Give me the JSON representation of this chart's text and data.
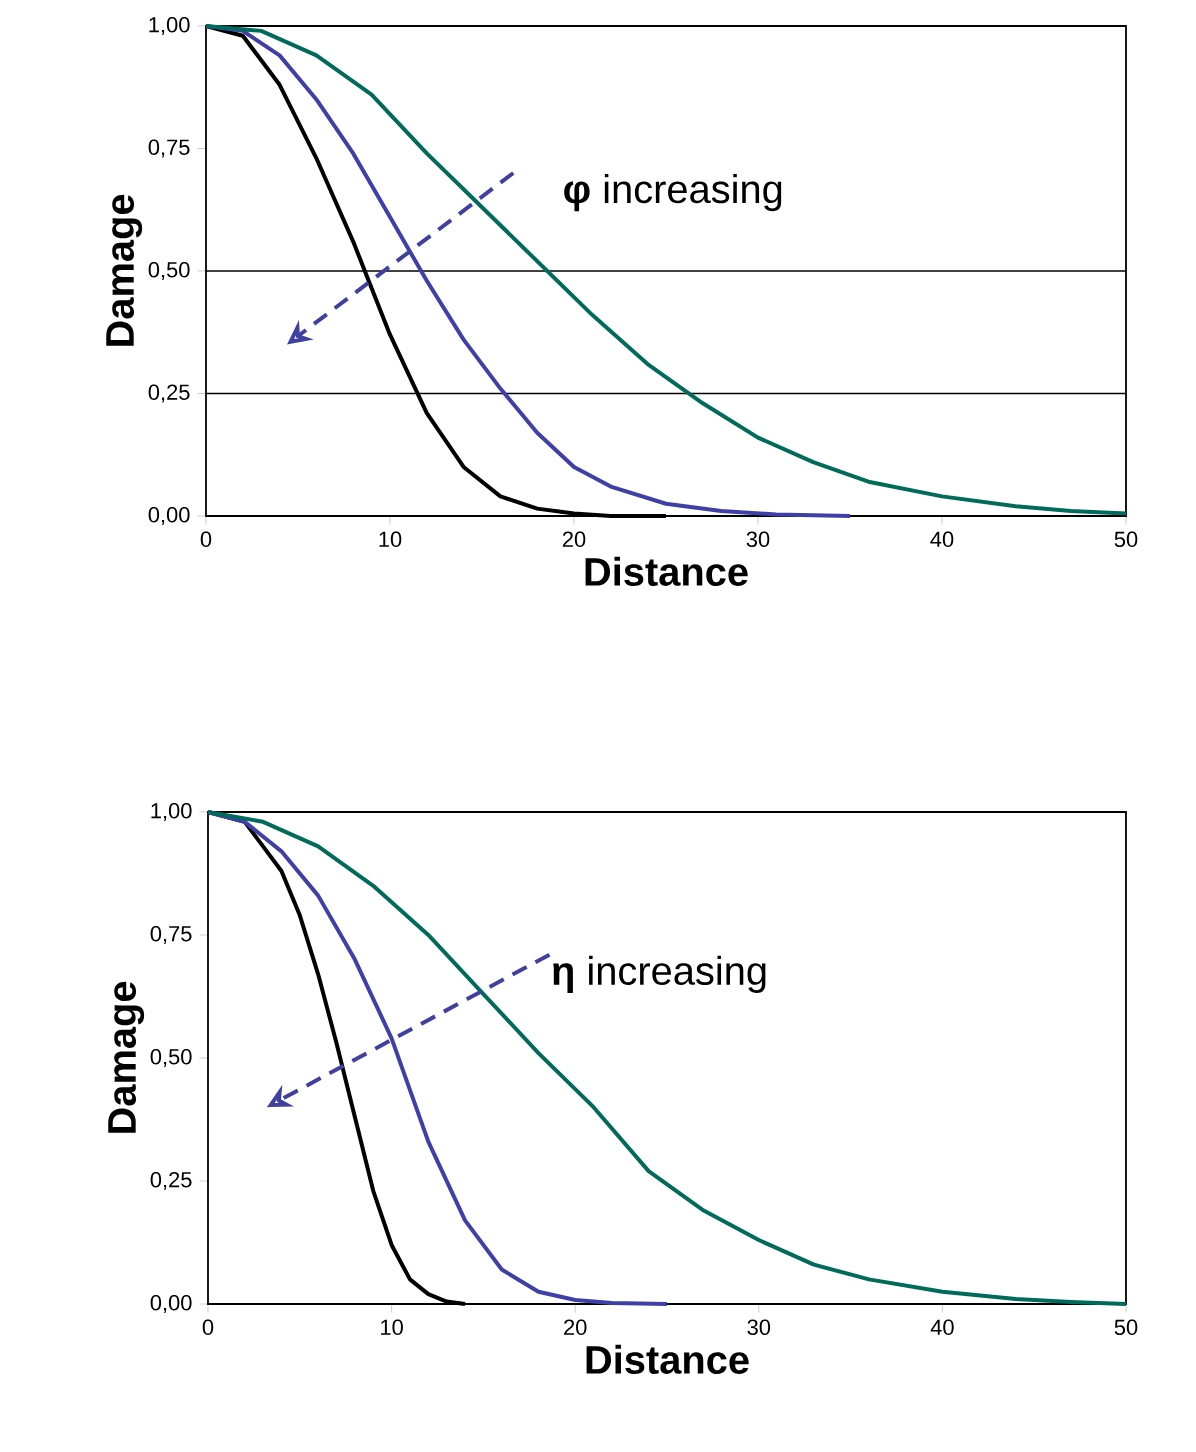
{
  "chart_data": [
    {
      "type": "line",
      "xlabel": "Distance",
      "ylabel": "Damage",
      "annotations": [
        "**φ** increasing"
      ],
      "xlim": [
        0,
        50
      ],
      "ylim": [
        0,
        1
      ],
      "xticks": [
        0,
        10,
        20,
        30,
        40,
        50
      ],
      "yticks": [
        {
          "value": 0,
          "label": "0,00"
        },
        {
          "value": 0.25,
          "label": "0,25"
        },
        {
          "value": 0.5,
          "label": "0,50"
        },
        {
          "value": 0.75,
          "label": "0,75"
        },
        {
          "value": 1,
          "label": "1,00"
        }
      ],
      "ref_lines": [
        {
          "axis": "y",
          "value": 0.5,
          "color": "#000000"
        },
        {
          "axis": "y",
          "value": 0.25,
          "color": "#000000"
        }
      ],
      "line_style": "solid",
      "marker": "none",
      "series": [
        {
          "color": "#000000",
          "x": [
            0,
            2,
            4,
            6,
            8,
            10,
            12,
            14,
            16,
            18,
            20,
            22,
            25
          ],
          "values": [
            1,
            0.98,
            0.88,
            0.73,
            0.56,
            0.37,
            0.21,
            0.1,
            0.04,
            0.015,
            0.005,
            0,
            0
          ]
        },
        {
          "color": "#3f3fa8",
          "x": [
            0,
            2,
            4,
            6,
            8,
            10,
            12,
            14,
            16,
            18,
            20,
            22,
            25,
            28,
            31,
            35
          ],
          "values": [
            1,
            0.99,
            0.94,
            0.85,
            0.74,
            0.61,
            0.48,
            0.36,
            0.26,
            0.17,
            0.1,
            0.06,
            0.025,
            0.01,
            0.003,
            0
          ]
        },
        {
          "color": "#006b5a",
          "x": [
            0,
            3,
            6,
            9,
            12,
            15,
            18,
            21,
            24,
            27,
            30,
            33,
            36,
            40,
            44,
            47,
            50
          ],
          "values": [
            1,
            0.99,
            0.94,
            0.86,
            0.74,
            0.63,
            0.52,
            0.41,
            0.31,
            0.23,
            0.16,
            0.11,
            0.07,
            0.04,
            0.02,
            0.01,
            0.005
          ]
        }
      ]
    },
    {
      "type": "line",
      "xlabel": "Distance",
      "ylabel": "Damage",
      "annotations": [
        "**η** increasing"
      ],
      "xlim": [
        0,
        50
      ],
      "ylim": [
        0,
        1
      ],
      "xticks": [
        0,
        10,
        20,
        30,
        40,
        50
      ],
      "yticks": [
        {
          "value": 0,
          "label": "0,00"
        },
        {
          "value": 0.25,
          "label": "0,25"
        },
        {
          "value": 0.5,
          "label": "0,50"
        },
        {
          "value": 0.75,
          "label": "0,75"
        },
        {
          "value": 1,
          "label": "1,00"
        }
      ],
      "line_style": "solid",
      "marker": "none",
      "series": [
        {
          "color": "#000000",
          "x": [
            0,
            2,
            4,
            5,
            6,
            7,
            8,
            9,
            10,
            11,
            12,
            13,
            14
          ],
          "values": [
            1,
            0.98,
            0.88,
            0.79,
            0.67,
            0.53,
            0.38,
            0.23,
            0.12,
            0.05,
            0.02,
            0.005,
            0
          ]
        },
        {
          "color": "#3f3fa8",
          "x": [
            0,
            2,
            4,
            6,
            8,
            10,
            12,
            14,
            16,
            18,
            20,
            22,
            25
          ],
          "values": [
            1,
            0.98,
            0.92,
            0.83,
            0.7,
            0.54,
            0.33,
            0.17,
            0.07,
            0.025,
            0.008,
            0.002,
            0
          ]
        },
        {
          "color": "#006b5a",
          "x": [
            0,
            3,
            6,
            9,
            12,
            15,
            18,
            21,
            24,
            27,
            30,
            33,
            36,
            40,
            44,
            47,
            50
          ],
          "values": [
            1,
            0.98,
            0.93,
            0.85,
            0.75,
            0.63,
            0.51,
            0.4,
            0.27,
            0.19,
            0.13,
            0.08,
            0.05,
            0.025,
            0.01,
            0.004,
            0
          ]
        }
      ]
    }
  ]
}
